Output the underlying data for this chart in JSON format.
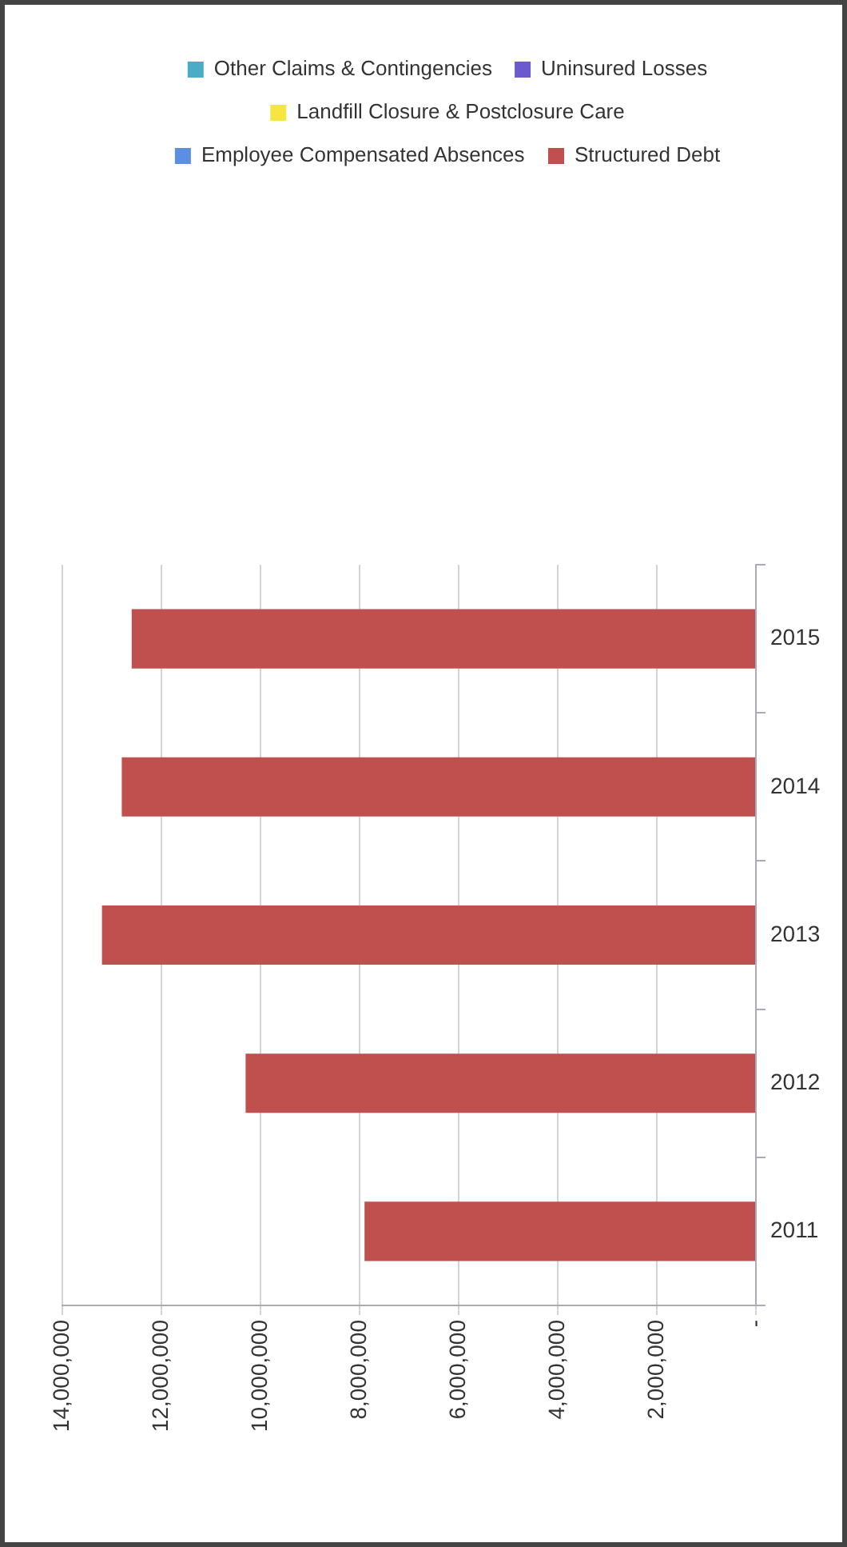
{
  "chart_data": {
    "type": "bar",
    "stacked": true,
    "orientation": "horizontal",
    "categories": [
      "2015",
      "2014",
      "2013",
      "2012",
      "2011"
    ],
    "series": [
      {
        "name": "Structured Debt",
        "color": "#c0504d",
        "values": [
          12600000,
          12800000,
          13200000,
          10300000,
          7900000
        ]
      },
      {
        "name": "Employee Compensated Absences",
        "color": "#5b8fe0",
        "values": [
          null,
          null,
          null,
          null,
          null
        ]
      },
      {
        "name": "Landfill Closure & Postclosure Care",
        "color": "#f5e642",
        "values": [
          null,
          null,
          null,
          null,
          null
        ]
      },
      {
        "name": "Uninsured Losses",
        "color": "#6a5acd",
        "values": [
          null,
          null,
          null,
          null,
          null
        ]
      },
      {
        "name": "Other Claims & Contingencies",
        "color": "#4bacc6",
        "values": [
          null,
          null,
          null,
          null,
          null
        ]
      }
    ],
    "xlim": [
      14000000,
      0
    ],
    "xticks": [
      {
        "value": 0,
        "label": "-"
      },
      {
        "value": 2000000,
        "label": "2,000,000"
      },
      {
        "value": 4000000,
        "label": "4,000,000"
      },
      {
        "value": 6000000,
        "label": "6,000,000"
      },
      {
        "value": 8000000,
        "label": "8,000,000"
      },
      {
        "value": 10000000,
        "label": "10,000,000"
      },
      {
        "value": 12000000,
        "label": "12,000,000"
      },
      {
        "value": 14000000,
        "label": "14,000,000"
      }
    ],
    "grid": "x",
    "legend": "top"
  }
}
